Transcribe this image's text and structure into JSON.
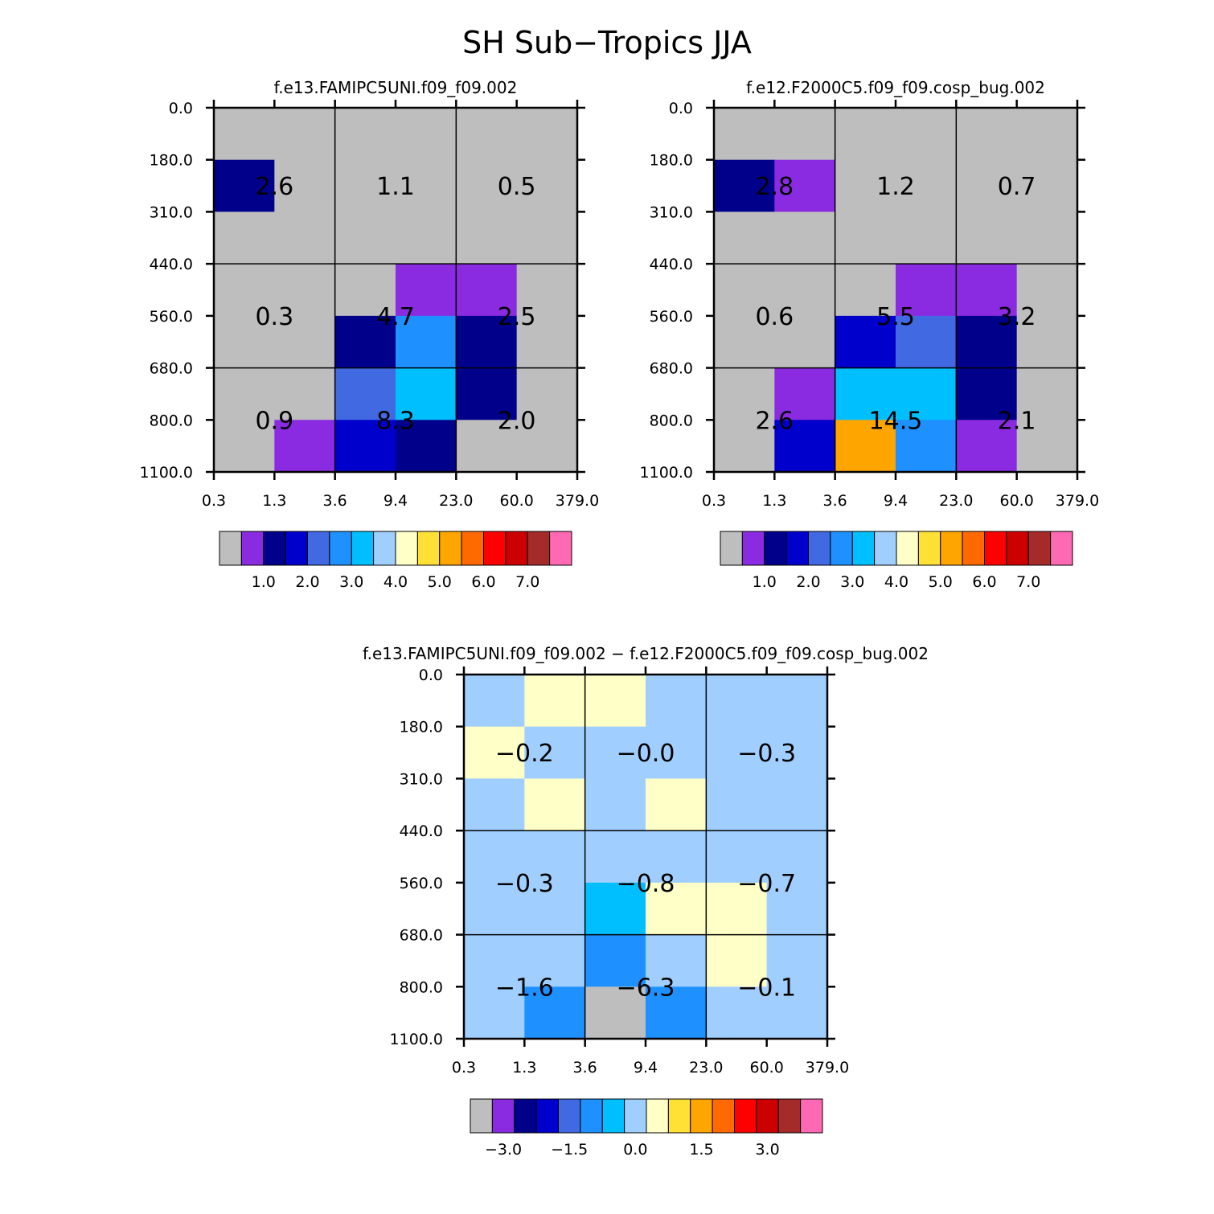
{
  "title": "SH Sub−Tropics JJA",
  "chart_data": [
    {
      "type": "heatmap",
      "title": "f.e13.FAMIPC5UNI.f09_f09.002",
      "x_ticks": [
        "0.3",
        "1.3",
        "3.6",
        "9.4",
        "23.0",
        "60.0",
        "379.0"
      ],
      "y_ticks": [
        "0.0",
        "180.0",
        "310.0",
        "440.0",
        "560.0",
        "680.0",
        "800.0",
        "1100.0"
      ],
      "cell_colors": [
        [
          "#bebebe",
          "#bebebe",
          "#bebebe",
          "#bebebe",
          "#bebebe",
          "#bebebe"
        ],
        [
          "#00008b",
          "#bebebe",
          "#bebebe",
          "#bebebe",
          "#bebebe",
          "#bebebe"
        ],
        [
          "#bebebe",
          "#bebebe",
          "#bebebe",
          "#bebebe",
          "#bebebe",
          "#bebebe"
        ],
        [
          "#bebebe",
          "#bebebe",
          "#bebebe",
          "#8a2be2",
          "#8a2be2",
          "#bebebe"
        ],
        [
          "#bebebe",
          "#bebebe",
          "#00008b",
          "#1e90ff",
          "#00008b",
          "#bebebe"
        ],
        [
          "#bebebe",
          "#bebebe",
          "#4169e1",
          "#00bfff",
          "#00008b",
          "#bebebe"
        ],
        [
          "#bebebe",
          "#8a2be2",
          "#0000cd",
          "#00008b",
          "#bebebe",
          "#bebebe"
        ]
      ],
      "block_values": [
        [
          "2.6",
          "1.1",
          "0.5"
        ],
        [
          "0.3",
          "4.7",
          "2.5"
        ],
        [
          "0.9",
          "8.3",
          "2.0"
        ]
      ],
      "colorbar_colors": [
        "#bebebe",
        "#8a2be2",
        "#00008b",
        "#0000cd",
        "#4169e1",
        "#1e90ff",
        "#00bfff",
        "#a0cfff",
        "#ffffc8",
        "#ffe135",
        "#ffa500",
        "#ff6a00",
        "#ff0000",
        "#cd0000",
        "#a52a2a",
        "#ff69b4"
      ],
      "colorbar_labels": [
        "1.0",
        "2.0",
        "3.0",
        "4.0",
        "5.0",
        "6.0",
        "7.0"
      ]
    },
    {
      "type": "heatmap",
      "title": "f.e12.F2000C5.f09_f09.cosp_bug.002",
      "x_ticks": [
        "0.3",
        "1.3",
        "3.6",
        "9.4",
        "23.0",
        "60.0",
        "379.0"
      ],
      "y_ticks": [
        "0.0",
        "180.0",
        "310.0",
        "440.0",
        "560.0",
        "680.0",
        "800.0",
        "1100.0"
      ],
      "cell_colors": [
        [
          "#bebebe",
          "#bebebe",
          "#bebebe",
          "#bebebe",
          "#bebebe",
          "#bebebe"
        ],
        [
          "#00008b",
          "#8a2be2",
          "#bebebe",
          "#bebebe",
          "#bebebe",
          "#bebebe"
        ],
        [
          "#bebebe",
          "#bebebe",
          "#bebebe",
          "#bebebe",
          "#bebebe",
          "#bebebe"
        ],
        [
          "#bebebe",
          "#bebebe",
          "#bebebe",
          "#8a2be2",
          "#8a2be2",
          "#bebebe"
        ],
        [
          "#bebebe",
          "#bebebe",
          "#0000cd",
          "#4169e1",
          "#00008b",
          "#bebebe"
        ],
        [
          "#bebebe",
          "#8a2be2",
          "#00bfff",
          "#00bfff",
          "#00008b",
          "#bebebe"
        ],
        [
          "#bebebe",
          "#0000cd",
          "#ffa500",
          "#1e90ff",
          "#8a2be2",
          "#bebebe"
        ]
      ],
      "block_values": [
        [
          "2.8",
          "1.2",
          "0.7"
        ],
        [
          "0.6",
          "5.5",
          "3.2"
        ],
        [
          "2.6",
          "14.5",
          "2.1"
        ]
      ],
      "colorbar_colors": [
        "#bebebe",
        "#8a2be2",
        "#00008b",
        "#0000cd",
        "#4169e1",
        "#1e90ff",
        "#00bfff",
        "#a0cfff",
        "#ffffc8",
        "#ffe135",
        "#ffa500",
        "#ff6a00",
        "#ff0000",
        "#cd0000",
        "#a52a2a",
        "#ff69b4"
      ],
      "colorbar_labels": [
        "1.0",
        "2.0",
        "3.0",
        "4.0",
        "5.0",
        "6.0",
        "7.0"
      ]
    },
    {
      "type": "heatmap",
      "title": "f.e13.FAMIPC5UNI.f09_f09.002 − f.e12.F2000C5.f09_f09.cosp_bug.002",
      "x_ticks": [
        "0.3",
        "1.3",
        "3.6",
        "9.4",
        "23.0",
        "60.0",
        "379.0"
      ],
      "y_ticks": [
        "0.0",
        "180.0",
        "310.0",
        "440.0",
        "560.0",
        "680.0",
        "800.0",
        "1100.0"
      ],
      "cell_colors": [
        [
          "#a0cfff",
          "#ffffc8",
          "#ffffc8",
          "#a0cfff",
          "#a0cfff",
          "#a0cfff"
        ],
        [
          "#ffffc8",
          "#a0cfff",
          "#a0cfff",
          "#a0cfff",
          "#a0cfff",
          "#a0cfff"
        ],
        [
          "#a0cfff",
          "#ffffc8",
          "#a0cfff",
          "#ffffc8",
          "#a0cfff",
          "#a0cfff"
        ],
        [
          "#a0cfff",
          "#a0cfff",
          "#a0cfff",
          "#a0cfff",
          "#a0cfff",
          "#a0cfff"
        ],
        [
          "#a0cfff",
          "#a0cfff",
          "#00bfff",
          "#ffffc8",
          "#ffffc8",
          "#a0cfff"
        ],
        [
          "#a0cfff",
          "#a0cfff",
          "#1e90ff",
          "#a0cfff",
          "#ffffc8",
          "#a0cfff"
        ],
        [
          "#a0cfff",
          "#1e90ff",
          "#bebebe",
          "#1e90ff",
          "#a0cfff",
          "#a0cfff"
        ]
      ],
      "block_values": [
        [
          "−0.2",
          "−0.0",
          "−0.3"
        ],
        [
          "−0.3",
          "−0.8",
          "−0.7"
        ],
        [
          "−1.6",
          "−6.3",
          "−0.1"
        ]
      ],
      "colorbar_colors": [
        "#bebebe",
        "#8a2be2",
        "#00008b",
        "#0000cd",
        "#4169e1",
        "#1e90ff",
        "#00bfff",
        "#a0cfff",
        "#ffffc8",
        "#ffe135",
        "#ffa500",
        "#ff6a00",
        "#ff0000",
        "#cd0000",
        "#a52a2a",
        "#ff69b4"
      ],
      "colorbar_labels": [
        "−3.0",
        "−1.5",
        "0.0",
        "1.5",
        "3.0"
      ]
    }
  ]
}
